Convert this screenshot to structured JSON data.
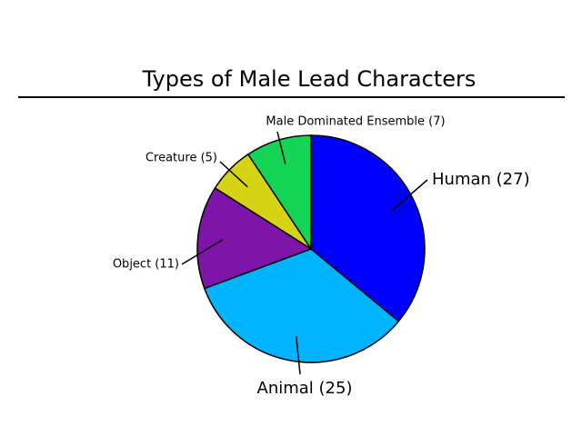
{
  "chart_data": {
    "type": "pie",
    "title": "Types of Male Lead Characters",
    "categories": [
      "Human (27)",
      "Animal (25)",
      "Object (11)",
      "Creature (5)",
      "Male Dominated Ensemble (7)"
    ],
    "values": [
      27,
      25,
      11,
      5,
      7
    ],
    "colors": [
      "#0000ff",
      "#00b4ff",
      "#7f14aa",
      "#d4d414",
      "#14d455"
    ]
  }
}
